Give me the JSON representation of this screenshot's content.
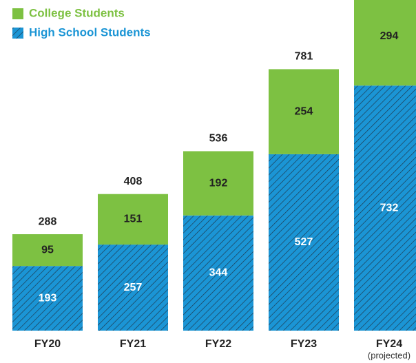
{
  "chart_data": {
    "type": "stacked_bar",
    "categories": [
      "FY20",
      "FY21",
      "FY22",
      "FY23",
      "FY24"
    ],
    "annotation": "(projected)",
    "series": [
      {
        "name": "High School Students",
        "color": "#1b95d5",
        "hatch": true,
        "values": [
          193,
          257,
          344,
          527,
          732
        ]
      },
      {
        "name": "College Students",
        "color": "#7dc142",
        "hatch": false,
        "values": [
          95,
          151,
          192,
          254,
          294
        ]
      }
    ],
    "totals": [
      288,
      408,
      536,
      781,
      null
    ],
    "ylim": [
      0,
      1000
    ]
  }
}
